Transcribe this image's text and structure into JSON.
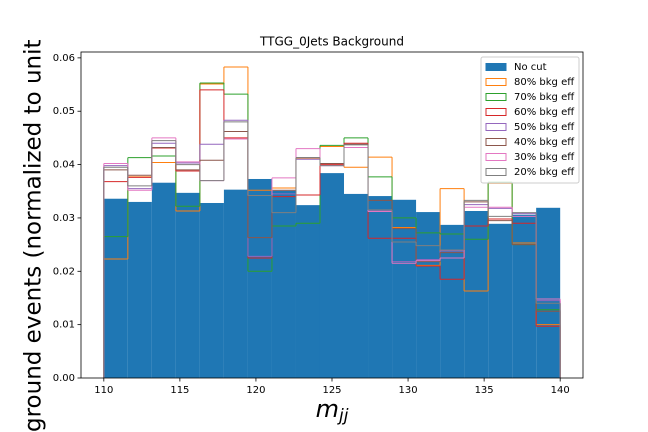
{
  "chart_data": {
    "type": "histogram",
    "title": "TTGG_0Jets Background",
    "xlabel": "m",
    "xlabel_sub": "jj",
    "ylabel": "ground events (normalized to unit",
    "bins": [
      110,
      111.579,
      113.158,
      114.737,
      116.316,
      117.895,
      119.474,
      121.053,
      122.632,
      124.211,
      125.789,
      127.368,
      128.947,
      130.526,
      132.105,
      133.684,
      135.263,
      136.842,
      138.421,
      140
    ],
    "series": [
      {
        "name": "No cut",
        "color": "#1f77b4",
        "filled": true,
        "values": [
          0.0336,
          0.033,
          0.0366,
          0.0347,
          0.0328,
          0.0353,
          0.0373,
          0.0351,
          0.0324,
          0.0384,
          0.0345,
          0.0341,
          0.0334,
          0.0311,
          0.0287,
          0.0313,
          0.0289,
          0.0306,
          0.0319
        ]
      },
      {
        "name": "80% bkg eff",
        "color": "#ff7f0e",
        "filled": false,
        "values": [
          0.0223,
          0.0377,
          0.0404,
          0.0313,
          0.0551,
          0.0583,
          0.0352,
          0.0356,
          0.0412,
          0.0434,
          0.0395,
          0.0414,
          0.0282,
          0.0211,
          0.0355,
          0.0163,
          0.0365,
          0.0253,
          0.01
        ]
      },
      {
        "name": "70% bkg eff",
        "color": "#2ca02c",
        "filled": false,
        "values": [
          0.0265,
          0.0413,
          0.0416,
          0.0322,
          0.0553,
          0.0532,
          0.02,
          0.0285,
          0.029,
          0.0436,
          0.045,
          0.0377,
          0.03,
          0.0272,
          0.027,
          0.026,
          0.0367,
          0.025,
          0.0128
        ]
      },
      {
        "name": "60% bkg eff",
        "color": "#d62728",
        "filled": false,
        "values": [
          0.0368,
          0.0376,
          0.0431,
          0.0388,
          0.054,
          0.045,
          0.0225,
          0.034,
          0.0343,
          0.04,
          0.044,
          0.0262,
          0.0262,
          0.021,
          0.0185,
          0.0285,
          0.0298,
          0.029,
          0.0097
        ]
      },
      {
        "name": "50% bkg eff",
        "color": "#9467bd",
        "filled": false,
        "values": [
          0.0398,
          0.0355,
          0.044,
          0.0403,
          0.0438,
          0.0483,
          0.0228,
          0.0345,
          0.041,
          0.0398,
          0.0432,
          0.0313,
          0.0218,
          0.0222,
          0.0238,
          0.0325,
          0.0318,
          0.0308,
          0.0145
        ]
      },
      {
        "name": "40% bkg eff",
        "color": "#8c564b",
        "filled": false,
        "values": [
          0.039,
          0.038,
          0.0432,
          0.039,
          0.0408,
          0.0462,
          0.0263,
          0.0352,
          0.0413,
          0.0402,
          0.0438,
          0.0333,
          0.028,
          0.0218,
          0.0235,
          0.033,
          0.0295,
          0.025,
          0.0125
        ]
      },
      {
        "name": "30% bkg eff",
        "color": "#e377c2",
        "filled": false,
        "values": [
          0.0402,
          0.0352,
          0.045,
          0.0405,
          0.037,
          0.0448,
          0.0342,
          0.0375,
          0.043,
          0.0398,
          0.0432,
          0.0312,
          0.0215,
          0.022,
          0.0225,
          0.032,
          0.032,
          0.0303,
          0.0148
        ]
      },
      {
        "name": "20% bkg eff",
        "color": "#7f7f7f",
        "filled": false,
        "values": [
          0.0395,
          0.036,
          0.0445,
          0.04,
          0.037,
          0.048,
          0.0342,
          0.031,
          0.0413,
          0.0398,
          0.0437,
          0.0315,
          0.0255,
          0.0248,
          0.024,
          0.0333,
          0.0303,
          0.031,
          0.014
        ]
      }
    ],
    "xlim": [
      108.5,
      141.5
    ],
    "ylim": [
      0,
      0.0611
    ],
    "xticks": [
      110,
      115,
      120,
      125,
      130,
      135,
      140
    ],
    "yticks": [
      {
        "value": 0,
        "label": "0.00"
      },
      {
        "value": 0.01,
        "label": "0.01"
      },
      {
        "value": 0.02,
        "label": "0.02"
      },
      {
        "value": 0.03,
        "label": "0.03"
      },
      {
        "value": 0.04,
        "label": "0.04"
      },
      {
        "value": 0.05,
        "label": "0.05"
      },
      {
        "value": 0.06,
        "label": "0.06"
      }
    ],
    "legend": "upper right"
  }
}
